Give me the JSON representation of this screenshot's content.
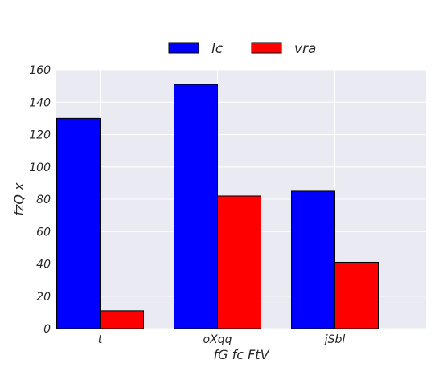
{
  "chart_data": {
    "type": "bar",
    "title": "",
    "xlabel": "fG fc FtV",
    "ylabel": "fzQ x",
    "categories": [
      "t",
      "oXqq",
      "jSbl"
    ],
    "series": [
      {
        "name": "lc",
        "values": [
          130,
          151,
          85
        ],
        "color": "#0000ff"
      },
      {
        "name": "vra",
        "values": [
          11,
          82,
          41
        ],
        "color": "#ff0000"
      }
    ],
    "ylim": [
      0,
      160
    ],
    "yticks": [
      0,
      20,
      40,
      60,
      80,
      100,
      120,
      140,
      160
    ],
    "grid": true,
    "legend": "top-center, outside plot",
    "background": "#eaeaf2",
    "gridline_color": "#ffffff"
  }
}
